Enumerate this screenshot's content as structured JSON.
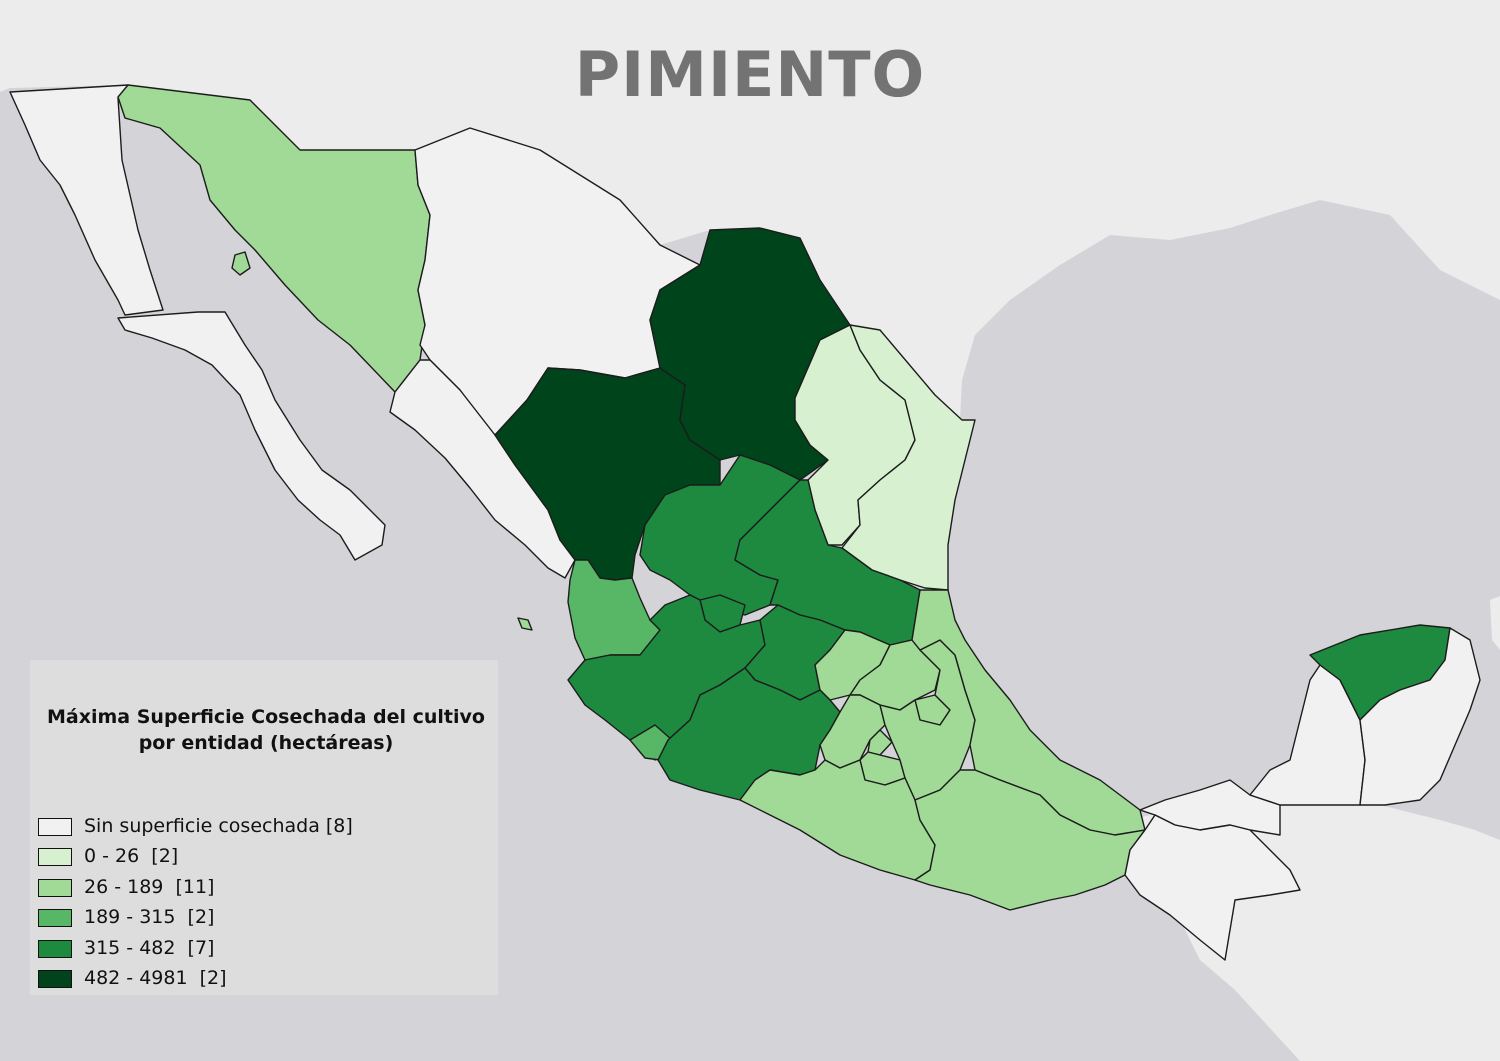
{
  "title": "PIMIENTO",
  "legend": {
    "title_line1": "Máxima Superficie Cosechada del cultivo",
    "title_line2": "por entidad (hectáreas)",
    "classes": [
      {
        "label": "Sin superficie cosechada [8]",
        "color": "#f1f1f1"
      },
      {
        "label": "0 - 26  [2]",
        "color": "#d7f0d0"
      },
      {
        "label": "26 - 189  [11]",
        "color": "#a0da96"
      },
      {
        "label": "189 - 315  [2]",
        "color": "#58b766"
      },
      {
        "label": "315 - 482  [7]",
        "color": "#1e8a40"
      },
      {
        "label": "482 - 4981  [2]",
        "color": "#00441b"
      }
    ]
  },
  "colors": {
    "ocean": "#d4d3d8",
    "land_background": "#ececec",
    "state_border": "#1c1c1c",
    "title": "#737373"
  }
}
